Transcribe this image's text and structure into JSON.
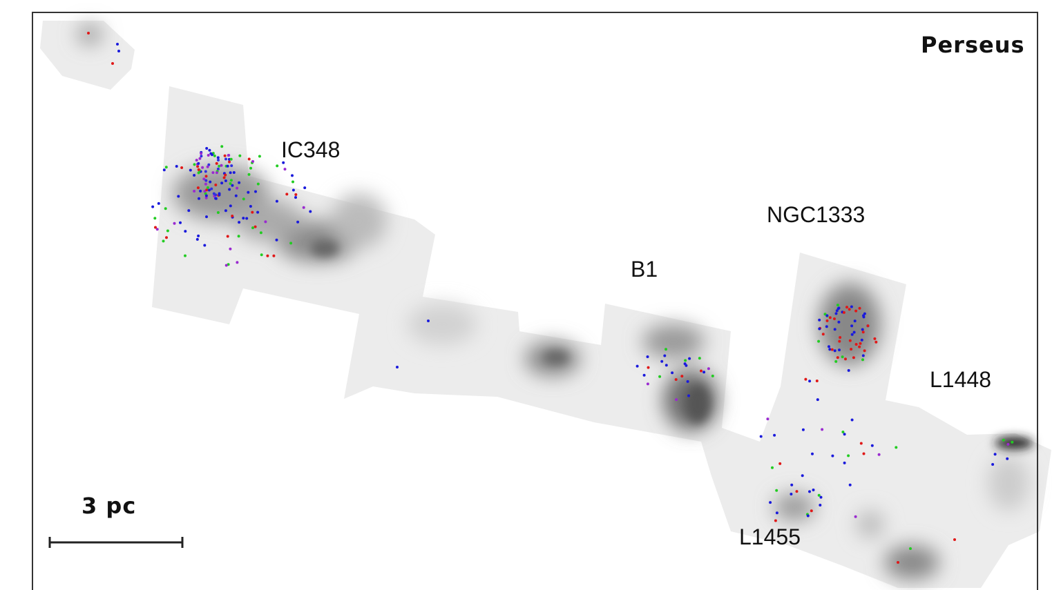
{
  "header": {
    "title": "Perseus"
  },
  "labels": [
    "IC348",
    "NGC1333",
    "B1",
    "L1448",
    "L1455"
  ],
  "scale_bar": {
    "label": "3 pc"
  }
}
